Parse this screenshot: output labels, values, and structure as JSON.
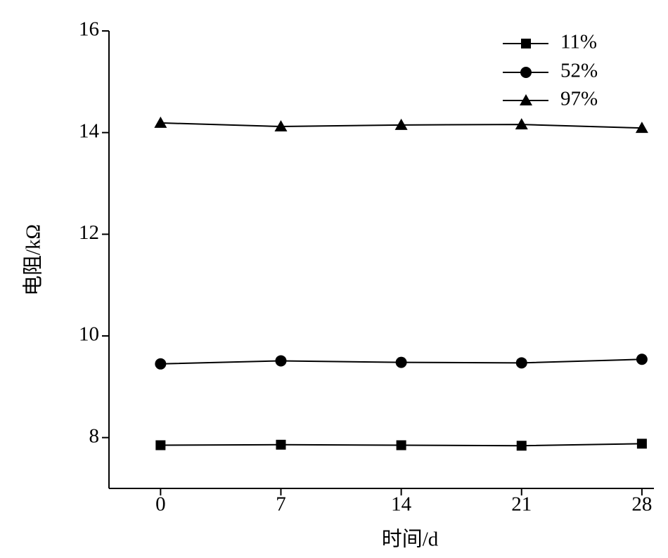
{
  "chart_data": {
    "type": "line",
    "x_label": "时间/d",
    "y_label": "电阻/kΩ",
    "x": [
      0,
      7,
      14,
      21,
      28
    ],
    "xlim": [
      -3,
      28.7
    ],
    "xticks": [
      0,
      7,
      14,
      21,
      28
    ],
    "ylim": [
      7,
      16
    ],
    "yticks": [
      8,
      10,
      12,
      14,
      16
    ],
    "legend": "top-right",
    "series": [
      {
        "name": "11%",
        "color": "#000000",
        "marker": "square",
        "values": [
          7.85,
          7.86,
          7.85,
          7.84,
          7.88
        ]
      },
      {
        "name": "52%",
        "color": "#000000",
        "marker": "circle",
        "values": [
          9.45,
          9.51,
          9.48,
          9.47,
          9.54
        ]
      },
      {
        "name": "97%",
        "color": "#000000",
        "marker": "triangle",
        "values": [
          14.19,
          14.12,
          14.15,
          14.16,
          14.09
        ]
      }
    ]
  }
}
